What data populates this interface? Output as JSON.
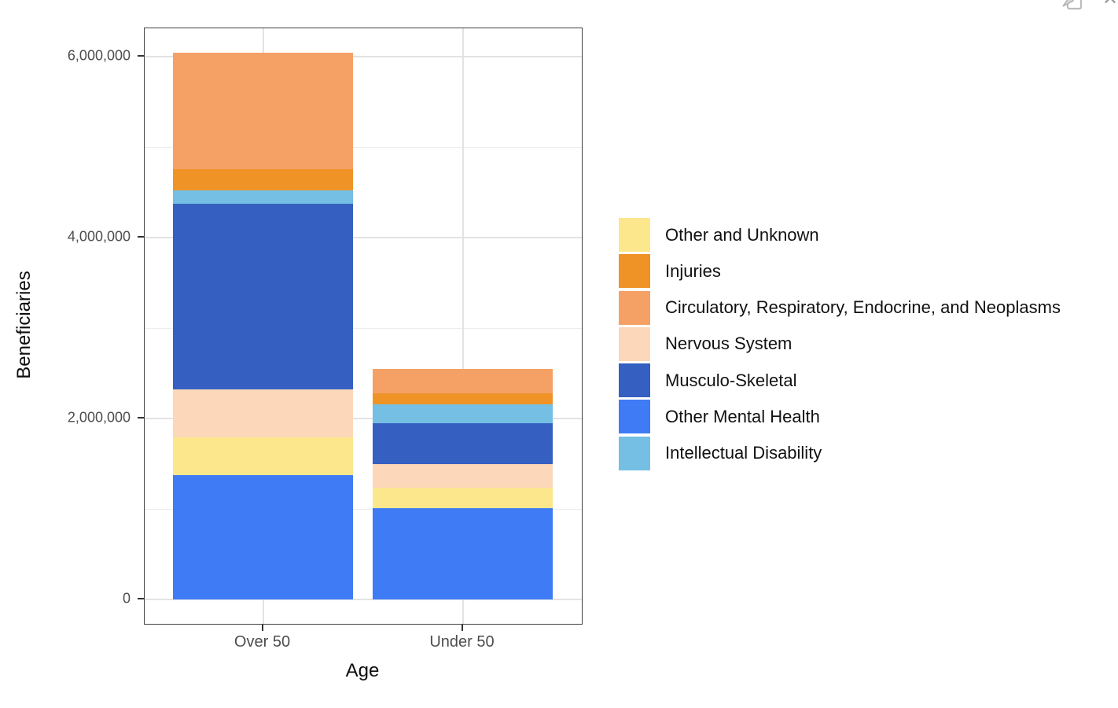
{
  "window": {
    "export_icon": "export-plot-icon",
    "close_icon": "close-icon",
    "close_glyph": "✕"
  },
  "chart_data": {
    "type": "bar",
    "stacked": true,
    "title": "",
    "xlabel": "Age",
    "ylabel": "Beneficiaries",
    "categories": [
      "Over 50",
      "Under 50"
    ],
    "series_bottom_to_top": [
      {
        "name": "Other Mental Health",
        "color": "#3E7BF5",
        "values": [
          1375000,
          1010000
        ]
      },
      {
        "name": "Other and Unknown",
        "color": "#FDE78D",
        "values": [
          420000,
          225000
        ]
      },
      {
        "name": "Nervous System",
        "color": "#FCD7B9",
        "values": [
          530000,
          260000
        ]
      },
      {
        "name": "Musculo-Skeletal",
        "color": "#3560C1",
        "values": [
          2045000,
          455000
        ]
      },
      {
        "name": "Intellectual Disability",
        "color": "#74BFE3",
        "values": [
          155000,
          210000
        ]
      },
      {
        "name": "Injuries",
        "color": "#EF9327",
        "values": [
          235000,
          115000
        ]
      },
      {
        "name": "Circulatory, Respiratory, Endocrine, and Neoplasms",
        "color": "#F5A166",
        "values": [
          1285000,
          270000
        ]
      }
    ],
    "totals": {
      "Over 50": 6045000,
      "Under 50": 2545000
    },
    "legend_order": [
      "Other and Unknown",
      "Injuries",
      "Circulatory, Respiratory, Endocrine, and Neoplasms",
      "Nervous System",
      "Musculo-Skeletal",
      "Other Mental Health",
      "Intellectual Disability"
    ],
    "legend_position": "right",
    "legend_title": "",
    "y_ticks": [
      0,
      2000000,
      4000000,
      6000000
    ],
    "y_tick_labels": [
      "0",
      "2,000,000",
      "4,000,000",
      "6,000,000"
    ],
    "ylim": [
      0,
      6313000
    ],
    "grid": "on",
    "grid_minor_every": 1000000,
    "panel_border_color": "#424242",
    "grid_major_color": "#e3e3e3",
    "grid_minor_color": "#ededed",
    "tick_label_color": "#4d4d4d",
    "axis_title_color": "#0d0d0d"
  }
}
